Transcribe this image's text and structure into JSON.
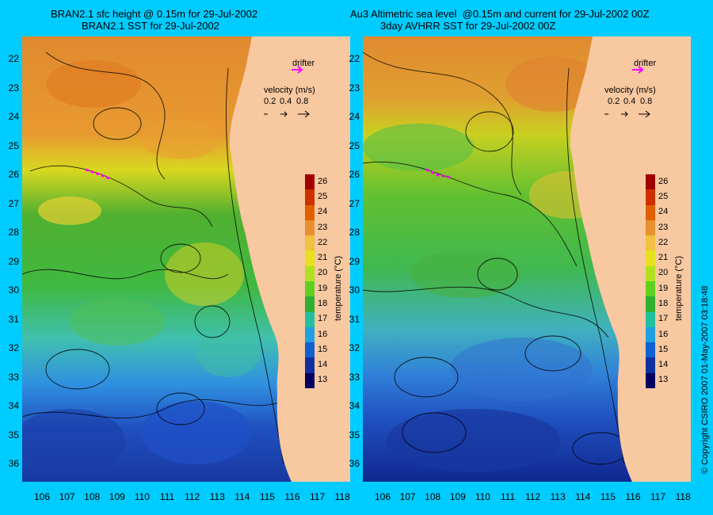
{
  "left_panel": {
    "title_line1": "BRAN2.1 sfc height @ 0.15m for 29-Jul-2002",
    "title_line2": "BRAN2.1 SST for 29-Jul-2002"
  },
  "right_panel": {
    "title_line1": "Au3 Altimetric sea level  @0.15m and current for 29-Jul-2002 00Z",
    "title_line2": "3day AVHRR SST for 29-Jul-2002 00Z"
  },
  "legend": {
    "drifter_label": "drifter",
    "velocity_label": "velocity (m/s)",
    "velocity_scales": [
      "0.2",
      "0.4",
      "0.8"
    ]
  },
  "colorbar": {
    "title": "temperature (°C)",
    "ticks": [
      "26",
      "25",
      "24",
      "23",
      "22",
      "21",
      "20",
      "19",
      "18",
      "17",
      "16",
      "15",
      "14",
      "13"
    ],
    "colors": [
      "#a00000",
      "#d03000",
      "#e06000",
      "#e89030",
      "#f0c040",
      "#e8e020",
      "#b0e020",
      "#60d020",
      "#30b030",
      "#20c0a0",
      "#20a0e0",
      "#1060d0",
      "#1030a0",
      "#080060"
    ]
  },
  "axes": {
    "latitudes": [
      "22",
      "23",
      "24",
      "25",
      "26",
      "27",
      "28",
      "29",
      "30",
      "31",
      "32",
      "33",
      "34",
      "35",
      "36"
    ],
    "longitudes": [
      "106",
      "107",
      "108",
      "109",
      "110",
      "111",
      "112",
      "113",
      "114",
      "115",
      "116",
      "117",
      "118"
    ]
  },
  "copyright": "© Copyright CSIRO 2007   01-May-2007 03:18:48",
  "colors": {
    "background": "#00ccff",
    "land": "#f8c8a0",
    "drifter": "#ff00ff"
  }
}
